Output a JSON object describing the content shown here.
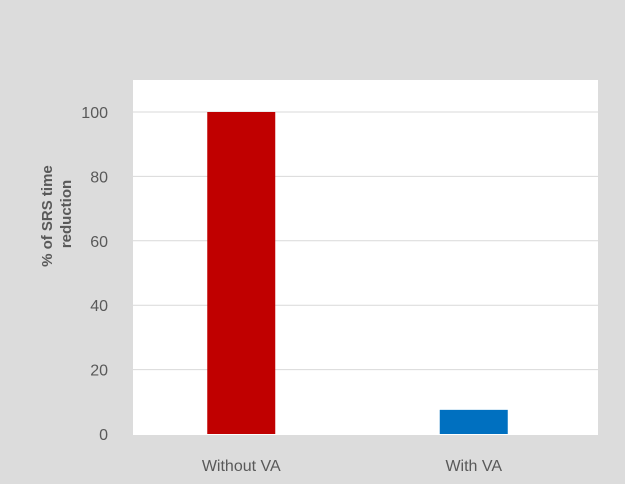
{
  "chart_data": {
    "type": "bar",
    "title": "",
    "xlabel": "",
    "ylabel": "% of SRS time reduction",
    "ylabel_lines": [
      "% of SRS time",
      "reduction"
    ],
    "categories": [
      "Without VA",
      "With VA"
    ],
    "values": [
      100,
      7.5
    ],
    "bar_colors": [
      "#c00000",
      "#0070c0"
    ],
    "ylim": [
      0,
      100
    ],
    "yticks": [
      0,
      20,
      40,
      60,
      80,
      100
    ],
    "grid": true,
    "legend": "none"
  },
  "colors": {
    "outer_background": "#dcdcdc",
    "plot_background": "#ffffff",
    "grid": "#d9d9d9",
    "tick_text": "#595959"
  }
}
